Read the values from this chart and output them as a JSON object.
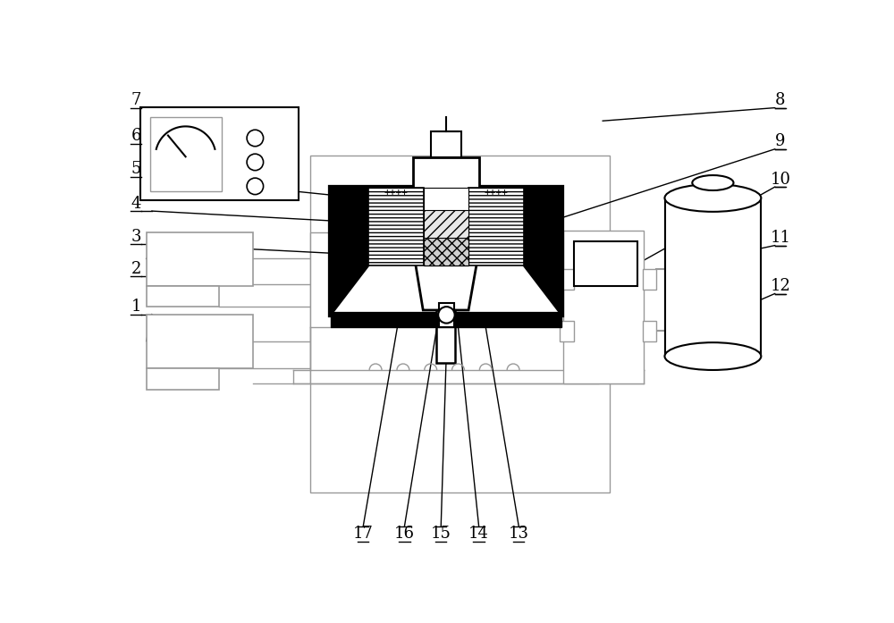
{
  "bg_color": "#ffffff",
  "lc": "#000000",
  "gc": "#999999",
  "figsize": [
    10.0,
    6.97
  ],
  "dpi": 100
}
